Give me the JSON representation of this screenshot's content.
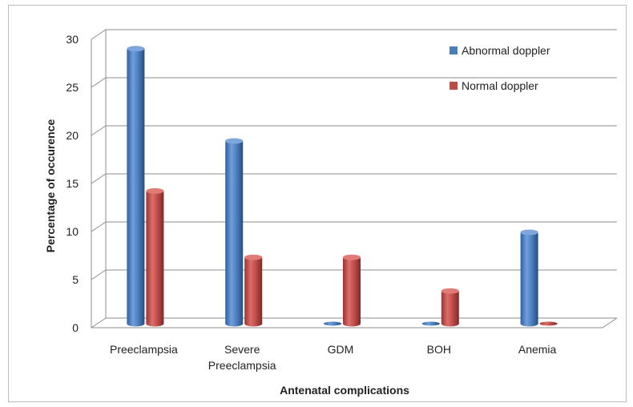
{
  "chart_data": {
    "type": "bar",
    "xlabel": "Antenatal  complications",
    "ylabel": "Percentage of occurence",
    "ylim": [
      0,
      30
    ],
    "yticks": [
      0,
      5,
      10,
      15,
      20,
      25,
      30
    ],
    "grid": true,
    "legend_position": "top-right",
    "categories": [
      "Preeclampsia",
      "Severe Preeclampsia",
      "GDM",
      "BOH",
      "Anemia"
    ],
    "category_lines": [
      [
        "Preeclampsia"
      ],
      [
        "Severe",
        "Preeclampsia"
      ],
      [
        "GDM"
      ],
      [
        "BOH"
      ],
      [
        "Anemia"
      ]
    ],
    "series": [
      {
        "name": "Abnormal doppler",
        "values": [
          28.6,
          19.0,
          0,
          0,
          9.5
        ],
        "color": "#4a7ebb"
      },
      {
        "name": "Normal doppler",
        "values": [
          13.8,
          6.9,
          6.9,
          3.4,
          0
        ],
        "color": "#be4b48"
      }
    ]
  }
}
